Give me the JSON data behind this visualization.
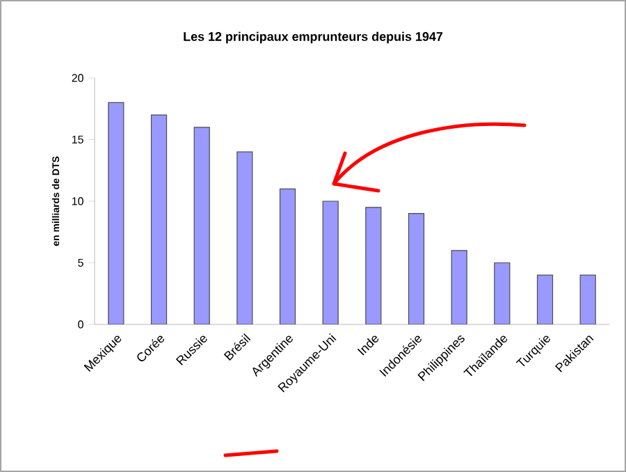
{
  "chart_data": {
    "type": "bar",
    "title": "Les 12 principaux emprunteurs depuis 1947",
    "ylabel": "en milliards de DTS",
    "categories": [
      "Mexique",
      "Corée",
      "Russie",
      "Brésil",
      "Argentine",
      "Royaume-Uni",
      "Inde",
      "Indonésie",
      "Philippines",
      "Thaïlande",
      "Turquie",
      "Pakistan"
    ],
    "values": [
      18,
      17,
      16,
      14,
      11,
      10,
      9.5,
      9,
      6,
      5,
      4,
      4
    ],
    "color": "#9999ff",
    "ylim": [
      0,
      20
    ],
    "yticks": [
      0,
      5,
      10,
      15,
      20
    ],
    "grid": false
  }
}
